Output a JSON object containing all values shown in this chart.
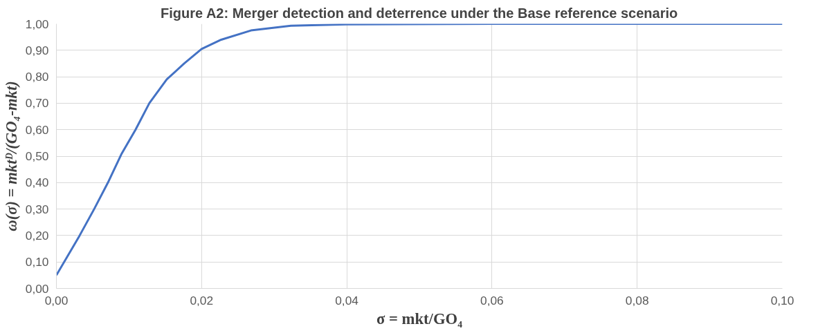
{
  "chart_data": {
    "type": "line",
    "title": "Figure A2: Merger detection and deterrence under the Base reference scenario",
    "xlabel": "σ = mkt/GO₄",
    "ylabel": "ω(σ) = mktᴰ/(GO₄-mkt)",
    "x": [
      0,
      0.0032,
      0.0052,
      0.0071,
      0.009,
      0.0109,
      0.0128,
      0.0152,
      0.0176,
      0.02,
      0.0227,
      0.0268,
      0.0323,
      0.04,
      0.06,
      0.08,
      0.1
    ],
    "series": [
      {
        "color": "#4472c4",
        "values": [
          0.05,
          0.2,
          0.3,
          0.4,
          0.51,
          0.6,
          0.7,
          0.79,
          0.85,
          0.905,
          0.94,
          0.975,
          0.993,
          0.998,
          1.0,
          1.0,
          1.0
        ]
      }
    ],
    "xlim": [
      0,
      0.1
    ],
    "ylim": [
      0,
      1
    ],
    "xticks": [
      {
        "value": 0,
        "label": "0,00"
      },
      {
        "value": 0.02,
        "label": "0,02"
      },
      {
        "value": 0.04,
        "label": "0,04"
      },
      {
        "value": 0.06,
        "label": "0,06"
      },
      {
        "value": 0.08,
        "label": "0,08"
      },
      {
        "value": 0.1,
        "label": "0,10"
      }
    ],
    "yticks": [
      {
        "value": 0,
        "label": "0,00"
      },
      {
        "value": 0.1,
        "label": "0,10"
      },
      {
        "value": 0.2,
        "label": "0,20"
      },
      {
        "value": 0.3,
        "label": "0,30"
      },
      {
        "value": 0.4,
        "label": "0,40"
      },
      {
        "value": 0.5,
        "label": "0,50"
      },
      {
        "value": 0.6,
        "label": "0,60"
      },
      {
        "value": 0.7,
        "label": "0,70"
      },
      {
        "value": 0.8,
        "label": "0,80"
      },
      {
        "value": 0.9,
        "label": "0,90"
      },
      {
        "value": 1,
        "label": "1,00"
      }
    ],
    "grid": true,
    "marker": "none",
    "line_style": "solid"
  }
}
